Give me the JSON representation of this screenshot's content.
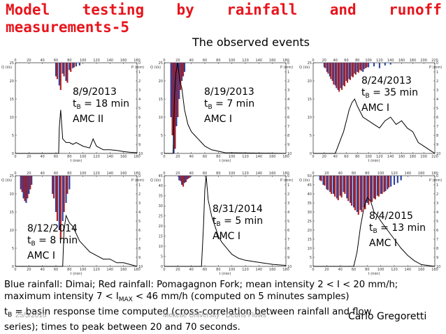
{
  "slide": {
    "title_line1_words": [
      "Model",
      "testing",
      "by",
      "rainfall",
      "and",
      "runoff"
    ],
    "title_line2": "measurements-5",
    "subtitle": "The observed events"
  },
  "panel_axis": {
    "q_label": "Q (l/s)",
    "p_label": "P (mm)",
    "t_label": "t (min)"
  },
  "panels": [
    {
      "date": "8/9/2013",
      "tb_prefix": "t",
      "tb_sub": "B",
      "tb_value": " = 18 min",
      "amc": "AMC II",
      "x_ticks": [
        "0",
        "20",
        "40",
        "60",
        "80",
        "100",
        "120",
        "140",
        "160",
        "180"
      ],
      "q_ticks": [
        "25",
        "20",
        "15",
        "10",
        "5",
        "0"
      ],
      "p_ticks": [
        "0",
        "1",
        "2",
        "3",
        "4",
        "5",
        "6",
        "7",
        "8",
        "9",
        "10"
      ]
    },
    {
      "date": "8/19/2013",
      "tb_prefix": "t",
      "tb_sub": "B",
      "tb_value": " = 7 min",
      "amc": "AMC I",
      "x_ticks": [
        "0",
        "20",
        "40",
        "60",
        "80",
        "100",
        "120",
        "140",
        "160",
        "180"
      ],
      "q_ticks": [
        "25",
        "20",
        "15",
        "10",
        "5",
        "0"
      ],
      "p_ticks": [
        "0",
        "1",
        "2",
        "3",
        "4",
        "5",
        "6",
        "7",
        "8",
        "9",
        "10"
      ]
    },
    {
      "date": "8/24/2013",
      "tb_prefix": "t",
      "tb_sub": "B",
      "tb_value": " = 35 min",
      "amc": "AMC I",
      "x_ticks": [
        "0",
        "20",
        "40",
        "60",
        "80",
        "100",
        "120",
        "140",
        "160",
        "180",
        "200",
        "220"
      ],
      "q_ticks": [
        "25",
        "20",
        "15",
        "10",
        "5",
        "0"
      ],
      "p_ticks": [
        "0",
        "1",
        "2",
        "3",
        "4",
        "5",
        "6",
        "7",
        "8",
        "9",
        "10"
      ]
    },
    {
      "date": "8/12/2014",
      "tb_prefix": "t",
      "tb_sub": "B",
      "tb_value": " = 8 min",
      "amc": "AMC I",
      "x_ticks": [
        "0",
        "20",
        "40",
        "60",
        "80",
        "100",
        "120",
        "140",
        "160",
        "180"
      ],
      "q_ticks": [
        "25",
        "20",
        "15",
        "10",
        "5",
        "0"
      ],
      "p_ticks": [
        "0",
        "1",
        "2",
        "3",
        "4",
        "5",
        "6",
        "7",
        "8",
        "9",
        "10"
      ]
    },
    {
      "date": "8/31/2014",
      "tb_prefix": "t",
      "tb_sub": "B",
      "tb_value": " = 5 min",
      "amc": "AMC I",
      "x_ticks": [
        "0",
        "20",
        "40",
        "60",
        "80",
        "100",
        "120",
        "140",
        "160",
        "180"
      ],
      "q_ticks": [
        "45",
        "40",
        "35",
        "30",
        "25",
        "20",
        "15",
        "10",
        "5",
        "0"
      ],
      "p_ticks": [
        "0",
        "1",
        "2",
        "3",
        "4",
        "5",
        "6",
        "7",
        "8",
        "9",
        "10"
      ]
    },
    {
      "date": "8/4/2015",
      "tb_prefix": "t",
      "tb_sub": "B",
      "tb_value": " = 13 min",
      "amc": "AMC I",
      "x_ticks": [
        "0",
        "20",
        "40",
        "60",
        "80",
        "100",
        "120",
        "140",
        "160",
        "180"
      ],
      "q_ticks": [
        "50",
        "45",
        "40",
        "35",
        "30",
        "25",
        "20",
        "15",
        "10",
        "5",
        "0"
      ],
      "p_ticks": [
        "0",
        "1",
        "2",
        "3",
        "4",
        "5",
        "6",
        "7",
        "8",
        "9",
        "10"
      ]
    }
  ],
  "footer": {
    "line1": "Blue rainfall: Dimai; Red rainfall: Pomagagnon Fork; mean intensity 2 < I < 20 mm/h;",
    "line2_pre": "maximum intensity 7 < I",
    "line2_sub": "MAX",
    "line2_post": " < 46 mm/h (computed on 5 minutes samples)",
    "line3_pre": "t",
    "line3_sub": "B",
    "line3_post": " = basin response time computed (cross-correlation between rainfall and flow",
    "line4": "series); times to peak between 20 and 70 seconds.",
    "date": "25/5/2016",
    "institution": "Mekelle University - Debris Flows",
    "author": "Carlo Gregoretti"
  },
  "colors": {
    "title": "#e8141c",
    "rain_blue": "#2b3f9e",
    "rain_red": "#b01c1c",
    "flow_line": "#000000"
  },
  "chart_data": [
    {
      "type": "bar+line",
      "panel": "8/9/2013",
      "x_unit": "min",
      "rain_blue": {
        "x": [
          60,
          65,
          70,
          75,
          80,
          85,
          90,
          95
        ],
        "P": [
          1.5,
          2.5,
          1.2,
          2.0,
          0.8,
          0.6,
          0.4,
          0.3
        ]
      },
      "rain_red": {
        "x": [
          62,
          67,
          72,
          77,
          82,
          87
        ],
        "P": [
          1.8,
          3.0,
          1.5,
          2.2,
          1.0,
          0.5
        ]
      },
      "flow": {
        "t": [
          0,
          64,
          65,
          67,
          70,
          75,
          80,
          85,
          90,
          100,
          110,
          115,
          120,
          130,
          140,
          150,
          160,
          170,
          180
        ],
        "Q": [
          0,
          0,
          7,
          12,
          4,
          3,
          3,
          2.5,
          3,
          2,
          1.5,
          4,
          2,
          1,
          1,
          0.8,
          0.5,
          0.3,
          0.2
        ]
      }
    },
    {
      "type": "bar+line",
      "panel": "8/19/2013",
      "x_unit": "min",
      "rain_blue": {
        "x": [
          10,
          14,
          18,
          22,
          26,
          30
        ],
        "P": [
          6,
          10,
          7,
          4,
          2,
          1
        ]
      },
      "rain_red": {
        "x": [
          12,
          16,
          20,
          24,
          28
        ],
        "P": [
          8,
          9.5,
          6,
          3,
          1.5
        ]
      },
      "flow": {
        "t": [
          0,
          13,
          15,
          17,
          20,
          23,
          26,
          30,
          35,
          40,
          45,
          50,
          55,
          60,
          70,
          90,
          180
        ],
        "Q": [
          0,
          0,
          15,
          22,
          25,
          20,
          18,
          12,
          8,
          6,
          5,
          4,
          3,
          2,
          1,
          0.2,
          0
        ]
      }
    },
    {
      "type": "bar+line",
      "panel": "8/24/2013",
      "x_unit": "min",
      "rain_blue": {
        "x": [
          20,
          25,
          30,
          35,
          40,
          45,
          50,
          55,
          60,
          65,
          70,
          75,
          80,
          85,
          90,
          95,
          100,
          110,
          120,
          130,
          140
        ],
        "P": [
          0.5,
          1,
          1.5,
          2,
          2.5,
          3,
          2.8,
          2.5,
          2,
          1.8,
          1.5,
          1.2,
          1,
          0.8,
          1,
          0.6,
          0.5,
          0.4,
          0.6,
          0.3,
          0.2
        ]
      },
      "rain_red": {
        "x": [
          22,
          27,
          32,
          37,
          42,
          47,
          52,
          57,
          62,
          67,
          72,
          77,
          82,
          87,
          92,
          97
        ],
        "P": [
          0.6,
          1.2,
          1.8,
          2.4,
          2.8,
          3.2,
          3.0,
          2.6,
          2.2,
          1.9,
          1.6,
          1.3,
          1.1,
          0.9,
          0.7,
          0.5
        ]
      },
      "flow": {
        "t": [
          0,
          40,
          45,
          50,
          55,
          60,
          65,
          70,
          75,
          80,
          90,
          100,
          110,
          120,
          130,
          140,
          150,
          160,
          170,
          180,
          190,
          200,
          210,
          220
        ],
        "Q": [
          0,
          0,
          2,
          4,
          6,
          9,
          12,
          14,
          15,
          13,
          10,
          9,
          8,
          7,
          9,
          10,
          8,
          9,
          7,
          6,
          3,
          2,
          1,
          0
        ]
      }
    },
    {
      "type": "bar+line",
      "panel": "8/12/2014",
      "x_unit": "min",
      "rain_blue": {
        "x": [
          8,
          12,
          16,
          20,
          24,
          55,
          60,
          65,
          70,
          75,
          80
        ],
        "P": [
          1.5,
          2.5,
          3,
          2,
          1,
          2,
          4,
          6,
          5,
          3,
          1.5
        ]
      },
      "rain_red": {
        "x": [
          10,
          14,
          18,
          22,
          57,
          62,
          67,
          72,
          77
        ],
        "P": [
          1.8,
          2.8,
          2.5,
          1.5,
          2.5,
          5,
          7,
          4,
          2
        ]
      },
      "flow": {
        "t": [
          0,
          70,
          72,
          75,
          80,
          85,
          90,
          95,
          100,
          110,
          120,
          130,
          140,
          150,
          160,
          170,
          180
        ],
        "Q": [
          0,
          0,
          10,
          14,
          12,
          11,
          9,
          7,
          6,
          4,
          3,
          2,
          2,
          1,
          1,
          0.5,
          0
        ]
      }
    },
    {
      "type": "bar+line",
      "panel": "8/31/2014",
      "x_unit": "min",
      "rain_blue": {
        "x": [
          22,
          26,
          30,
          34,
          38
        ],
        "P": [
          0.5,
          1,
          0.8,
          0.4,
          0.2
        ]
      },
      "rain_red": {
        "x": [
          24,
          28,
          32,
          36
        ],
        "P": [
          0.6,
          1.2,
          0.7,
          0.3
        ]
      },
      "flow": {
        "t": [
          0,
          55,
          58,
          60,
          62,
          65,
          70,
          75,
          80,
          85,
          90,
          95,
          100,
          110,
          120,
          140,
          160,
          180
        ],
        "Q": [
          0,
          0,
          20,
          38,
          45,
          33,
          25,
          20,
          15,
          12,
          10,
          8,
          6,
          4,
          3,
          2,
          1,
          0.5
        ]
      }
    },
    {
      "type": "bar+line",
      "panel": "8/4/2015",
      "x_unit": "min",
      "rain_blue": {
        "x": [
          10,
          15,
          20,
          25,
          30,
          35,
          40,
          45,
          50,
          55,
          60,
          65,
          70,
          75,
          80,
          85,
          90,
          95,
          100,
          105,
          110,
          115,
          120,
          125,
          130
        ],
        "P": [
          0.5,
          1,
          1.5,
          1.8,
          2,
          2.5,
          2.2,
          1.8,
          2.5,
          3,
          3.5,
          4,
          3.8,
          3.5,
          3,
          2.8,
          2.5,
          2.2,
          2,
          1.8,
          1.5,
          1.2,
          1,
          0.8,
          0.5
        ]
      },
      "rain_red": {
        "x": [
          12,
          17,
          22,
          27,
          32,
          37,
          42,
          47,
          52,
          57,
          62,
          67,
          72,
          77,
          82,
          87,
          92,
          97,
          102,
          107,
          112
        ],
        "P": [
          0.6,
          1.1,
          1.6,
          2,
          2.3,
          2.7,
          2.4,
          2,
          2.8,
          3.3,
          3.8,
          4.3,
          4,
          3.7,
          3.2,
          2.9,
          2.6,
          2.3,
          2,
          1.7,
          1.3
        ]
      },
      "flow": {
        "t": [
          0,
          60,
          65,
          70,
          75,
          80,
          85,
          90,
          95,
          100,
          110,
          120,
          130,
          140,
          150,
          160,
          170,
          180
        ],
        "Q": [
          0,
          0,
          8,
          22,
          32,
          38,
          36,
          30,
          28,
          25,
          20,
          15,
          10,
          6,
          3,
          1,
          0.5,
          0
        ]
      }
    }
  ]
}
